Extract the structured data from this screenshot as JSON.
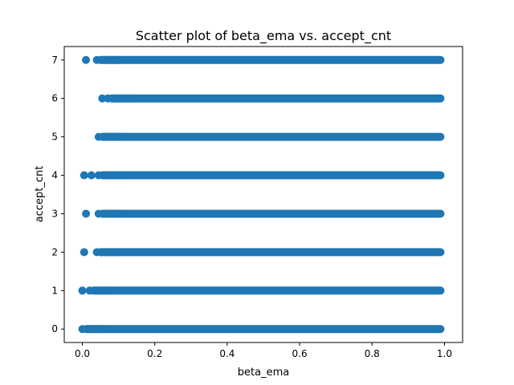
{
  "chart_data": {
    "type": "scatter",
    "title": "Scatter plot of beta_ema vs. accept_cnt",
    "xlabel": "beta_ema",
    "ylabel": "accept_cnt",
    "xlim": [
      -0.05,
      1.05
    ],
    "ylim": [
      -0.35,
      7.35
    ],
    "grid": false,
    "legend": "none",
    "color": "#1f77b4",
    "x_ticks": [
      {
        "value": 0.0,
        "label": "0.0"
      },
      {
        "value": 0.2,
        "label": "0.2"
      },
      {
        "value": 0.4,
        "label": "0.4"
      },
      {
        "value": 0.6,
        "label": "0.6"
      },
      {
        "value": 0.8,
        "label": "0.8"
      },
      {
        "value": 1.0,
        "label": "1.0"
      }
    ],
    "y_ticks": [
      {
        "value": 0,
        "label": "0"
      },
      {
        "value": 1,
        "label": "1"
      },
      {
        "value": 2,
        "label": "2"
      },
      {
        "value": 3,
        "label": "3"
      },
      {
        "value": 4,
        "label": "4"
      },
      {
        "value": 5,
        "label": "5"
      },
      {
        "value": 6,
        "label": "6"
      },
      {
        "value": 7,
        "label": "7"
      }
    ],
    "rows": [
      {
        "y": 0,
        "isolated_x": [],
        "band_start": 0.0,
        "band_end": 1.0
      },
      {
        "y": 1,
        "isolated_x": [
          0.0
        ],
        "band_start": 0.02,
        "band_end": 1.0
      },
      {
        "y": 2,
        "isolated_x": [
          0.005
        ],
        "band_start": 0.04,
        "band_end": 1.0
      },
      {
        "y": 3,
        "isolated_x": [
          0.01
        ],
        "band_start": 0.045,
        "band_end": 1.0
      },
      {
        "y": 4,
        "isolated_x": [
          0.005,
          0.025
        ],
        "band_start": 0.045,
        "band_end": 1.0
      },
      {
        "y": 5,
        "isolated_x": [],
        "band_start": 0.045,
        "band_end": 1.0
      },
      {
        "y": 6,
        "isolated_x": [
          0.055
        ],
        "band_start": 0.07,
        "band_end": 1.0
      },
      {
        "y": 7,
        "isolated_x": [
          0.01
        ],
        "band_start": 0.04,
        "band_end": 1.0
      }
    ]
  }
}
